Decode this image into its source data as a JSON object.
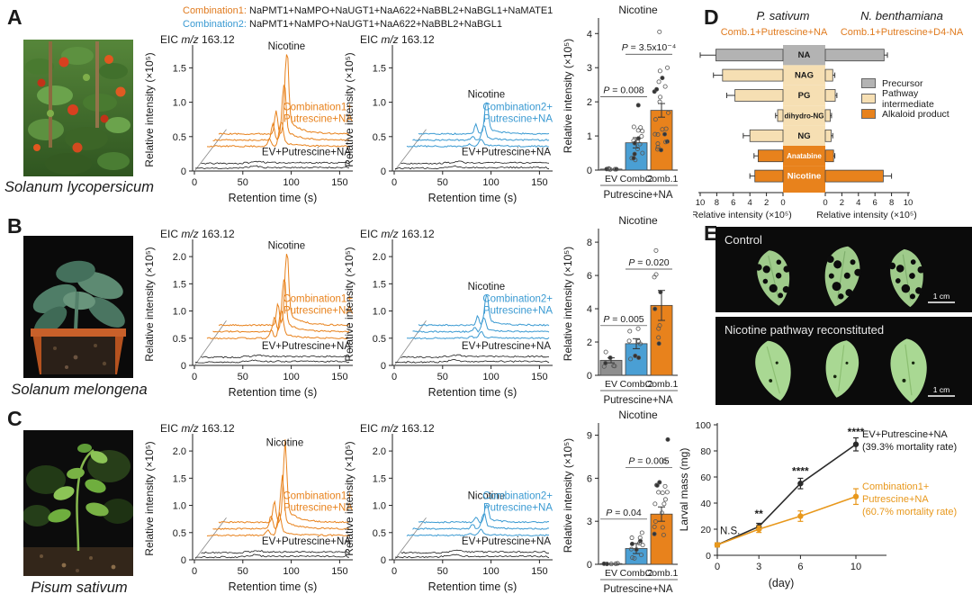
{
  "header": {
    "comb1_label": "Combination1:",
    "comb1_value": "NaPMT1+NaMPO+NaUGT1+NaA622+NaBBL2+NaBGL1+NaMATE1",
    "comb2_label": "Combination2:",
    "comb2_value": "NaPMT1+NaMPO+NaUGT1+NaA622+NaBBL2+NaBGL1"
  },
  "panel_labels": {
    "A": "A",
    "B": "B",
    "C": "C",
    "D": "D",
    "E": "E"
  },
  "species": {
    "A": "Solanum lycopersicum",
    "B": "Solanum melongena",
    "C": "Pisum sativum"
  },
  "colors": {
    "orange": "#e8821c",
    "blue": "#4a9fd4",
    "gray_bar": "#8f8f8f",
    "tan": "#f6dfb3",
    "precursor_gray": "#b3b3b3"
  },
  "panelD": {
    "left_header": "P. sativum",
    "right_header": "N. benthamiana",
    "left_sub": "Comb.1+Putrescine+NA",
    "right_sub": "Comb.1+Putrescine+D4-NA",
    "legend": [
      {
        "label": "Precursor",
        "color": "#b3b3b3"
      },
      {
        "label": "Pathway intermediate",
        "color": "#f6dfb3"
      },
      {
        "label": "Alkaloid product",
        "color": "#e8821c"
      }
    ]
  },
  "panelE": {
    "photo1_label": "Control",
    "photo2_label": "Nicotine pathway reconstituted",
    "scale_label": "1 cm"
  },
  "chart_data": [
    {
      "id": "chromA1",
      "kind": "chromatogram",
      "type": "line",
      "seed": 11,
      "title": "EIC m/z 163.12",
      "ylabel": "Relative intensity (×10⁵)",
      "xlabel": "Retention time (s)",
      "xticks": [
        0,
        50,
        100,
        150
      ],
      "yticks": [
        {
          "v": 0,
          "t": "0"
        },
        {
          "v": 0.5,
          "t": "0.5"
        },
        {
          "v": 1,
          "t": "1.0"
        },
        {
          "v": 1.5,
          "t": "1.5"
        }
      ],
      "ylim": [
        0,
        1.78
      ],
      "peak_label": "Nicotine",
      "peak_x": 78,
      "pre_x": 66,
      "series": [
        {
          "label_lines": [
            "Combination1+",
            "Putrescine+NA"
          ],
          "color": "#e8821c",
          "baselines": [
            0.36,
            0.45,
            0.54
          ],
          "peaks": [
            0.35,
            0.8,
            1.15
          ]
        },
        {
          "label": "EV+Putrescine+NA",
          "color": "#1a1a1a",
          "baselines": [
            0.04,
            0.11
          ]
        }
      ]
    },
    {
      "id": "chromA2",
      "kind": "chromatogram",
      "type": "line",
      "seed": 12,
      "title": "EIC m/z 163.12",
      "ylabel": "Relative intensity (×10⁵)",
      "xlabel": "Retention time (s)",
      "xticks": [
        0,
        50,
        100,
        150
      ],
      "yticks": [
        {
          "v": 0,
          "t": "0"
        },
        {
          "v": 0.5,
          "t": "0.5"
        },
        {
          "v": 1,
          "t": "1.0"
        },
        {
          "v": 1.5,
          "t": "1.5"
        }
      ],
      "ylim": [
        0,
        1.78
      ],
      "peak_label": "Nicotine",
      "peak_x": 78,
      "pre_x": 66,
      "series": [
        {
          "label_lines": [
            "Combination2+",
            "Putrescine+NA"
          ],
          "color": "#3a9ad2",
          "baselines": [
            0.36,
            0.45,
            0.54
          ],
          "peaks": [
            0.1,
            0.2,
            0.45
          ]
        },
        {
          "label": "EV+Putrescine+NA",
          "color": "#1a1a1a",
          "baselines": [
            0.04,
            0.11
          ]
        }
      ]
    },
    {
      "id": "chromB1",
      "kind": "chromatogram",
      "type": "line",
      "seed": 13,
      "title": "EIC m/z 163.12",
      "ylabel": "Relative intensity (×10⁵)",
      "xlabel": "Retention time (s)",
      "xticks": [
        0,
        50,
        100,
        150
      ],
      "yticks": [
        {
          "v": 0,
          "t": "0"
        },
        {
          "v": 0.5,
          "t": "0.5"
        },
        {
          "v": 1,
          "t": "1.0"
        },
        {
          "v": 1.5,
          "t": "1.5"
        },
        {
          "v": 2,
          "t": "2.0"
        }
      ],
      "ylim": [
        0,
        2.25
      ],
      "peak_label": "Nicotine",
      "peak_x": 78,
      "pre_x": 68,
      "series": [
        {
          "label_lines": [
            "Combination1+",
            "Putrescine+NA"
          ],
          "color": "#e8821c",
          "baselines": [
            0.5,
            0.62,
            0.74
          ],
          "peaks": [
            0.5,
            0.95,
            1.3
          ]
        },
        {
          "label": "EV+Putrescine+NA",
          "color": "#1a1a1a",
          "baselines": [
            0.06,
            0.15
          ]
        }
      ]
    },
    {
      "id": "chromB2",
      "kind": "chromatogram",
      "type": "line",
      "seed": 14,
      "title": "EIC m/z 163.12",
      "ylabel": "Relative intensity (×10⁵)",
      "xlabel": "Retention time (s)",
      "xticks": [
        0,
        50,
        100,
        150
      ],
      "yticks": [
        {
          "v": 0,
          "t": "0"
        },
        {
          "v": 0.5,
          "t": "0.5"
        },
        {
          "v": 1,
          "t": "1.0"
        },
        {
          "v": 1.5,
          "t": "1.5"
        },
        {
          "v": 2,
          "t": "2.0"
        }
      ],
      "ylim": [
        0,
        2.25
      ],
      "peak_label": "Nicotine",
      "peak_x": 78,
      "pre_x": 68,
      "series": [
        {
          "label_lines": [
            "Combination2+",
            "Putrescine+NA"
          ],
          "color": "#3a9ad2",
          "baselines": [
            0.5,
            0.62,
            0.74
          ],
          "peaks": [
            0.12,
            0.25,
            0.55
          ]
        },
        {
          "label": "EV+Putrescine+NA",
          "color": "#1a1a1a",
          "baselines": [
            0.06,
            0.15
          ]
        }
      ]
    },
    {
      "id": "chromC1",
      "kind": "chromatogram",
      "type": "line",
      "seed": 15,
      "title": "EIC m/z 163.12",
      "ylabel": "Relative intensity (×10⁵)",
      "xlabel": "Retention time (s)",
      "xticks": [
        0,
        50,
        100,
        150
      ],
      "yticks": [
        {
          "v": 0,
          "t": "0"
        },
        {
          "v": 0.5,
          "t": "0.5"
        },
        {
          "v": 1,
          "t": "1.0"
        },
        {
          "v": 1.5,
          "t": "1.5"
        },
        {
          "v": 2,
          "t": "2.0"
        }
      ],
      "ylim": [
        0,
        2.25
      ],
      "peak_label": "Nicotine",
      "peak_x": 76,
      "pre_x": 64,
      "series": [
        {
          "label_lines": [
            "Combination1+",
            "Putrescine+NA"
          ],
          "color": "#e8821c",
          "baselines": [
            0.45,
            0.57,
            0.69
          ],
          "peaks": [
            0.35,
            0.85,
            1.3
          ]
        },
        {
          "label": "EV+Putrescine+NA",
          "color": "#1a1a1a",
          "baselines": [
            0.05,
            0.13
          ]
        }
      ]
    },
    {
      "id": "chromC2",
      "kind": "chromatogram",
      "type": "line",
      "seed": 16,
      "title": "EIC m/z 163.12",
      "ylabel": "Relative intensity (×10⁵)",
      "xlabel": "Retention time (s)",
      "xticks": [
        0,
        50,
        100,
        150
      ],
      "yticks": [
        {
          "v": 0,
          "t": "0"
        },
        {
          "v": 0.5,
          "t": "0.5"
        },
        {
          "v": 1,
          "t": "1.0"
        },
        {
          "v": 1.5,
          "t": "1.5"
        },
        {
          "v": 2,
          "t": "2.0"
        }
      ],
      "ylim": [
        0,
        2.25
      ],
      "peak_label": "Nicotine",
      "peak_x": 78,
      "pre_x": 66,
      "series": [
        {
          "label_lines": [
            "Combination2+",
            "Putrescine+NA"
          ],
          "color": "#3a9ad2",
          "baselines": [
            0.45,
            0.57,
            0.69
          ],
          "peaks": [
            0.1,
            0.28,
            0.33
          ]
        },
        {
          "label": "EV+Putrescine+NA",
          "color": "#1a1a1a",
          "baselines": [
            0.05,
            0.13
          ]
        }
      ]
    },
    {
      "id": "barA",
      "kind": "bar",
      "type": "bar",
      "seed": 21,
      "title": "Nicotine",
      "ylabel": "Relative intensity (×10⁵)",
      "xlabel": "Putrescine+NA",
      "categories": [
        "EV",
        "Comb.2",
        "Comb.1"
      ],
      "values": [
        0.03,
        0.8,
        1.75
      ],
      "errors": [
        0.01,
        0.15,
        0.2
      ],
      "bar_colors": [
        "#8f8f8f",
        "#4a9fd4",
        "#e8821c"
      ],
      "yticks": [
        0,
        1,
        2,
        3,
        4
      ],
      "ylim": [
        0,
        4.35
      ],
      "pvalues": [
        {
          "text": "P = 0.008",
          "between": [
            0,
            1
          ],
          "y": 2.25
        },
        {
          "text": "P = 3.5x10⁻⁴",
          "between": [
            1,
            2
          ],
          "y": 3.5
        }
      ],
      "scatter_n": [
        6,
        16,
        20
      ],
      "outliers": [
        [],
        [
          1.9
        ],
        [
          2.7,
          3.0,
          4.05
        ]
      ]
    },
    {
      "id": "barB",
      "kind": "bar",
      "type": "bar",
      "seed": 22,
      "title": "Nicotine",
      "ylabel": "Relative intensity (×10⁵)",
      "xlabel": "Putrescine+NA",
      "categories": [
        "EV",
        "Comb.2",
        "Comb.1"
      ],
      "values": [
        0.9,
        1.9,
        4.2
      ],
      "errors": [
        0.15,
        0.3,
        0.9
      ],
      "bar_colors": [
        "#8f8f8f",
        "#4a9fd4",
        "#e8821c"
      ],
      "yticks": [
        0,
        2,
        4,
        6,
        8
      ],
      "ylim": [
        0,
        8.6
      ],
      "pvalues": [
        {
          "text": "P = 0.005",
          "between": [
            0,
            1
          ],
          "y": 3.2
        },
        {
          "text": "P = 0.020",
          "between": [
            1,
            2
          ],
          "y": 6.6
        }
      ],
      "scatter_n": [
        6,
        7,
        6
      ],
      "outliers": [
        [],
        [
          2.8
        ],
        [
          7.5,
          5.9,
          5.0
        ]
      ]
    },
    {
      "id": "barC",
      "kind": "bar",
      "type": "bar",
      "seed": 23,
      "title": "Nicotine",
      "ylabel": "Relative intensity (×10⁵)",
      "xlabel": "Putrescine+NA",
      "categories": [
        "EV",
        "Comb.2",
        "Comb.1"
      ],
      "values": [
        0.05,
        1.1,
        3.5
      ],
      "errors": [
        0.02,
        0.35,
        0.5
      ],
      "bar_colors": [
        "#8f8f8f",
        "#4a9fd4",
        "#e8821c"
      ],
      "yticks": [
        0,
        3,
        6,
        9
      ],
      "ylim": [
        0,
        9.6
      ],
      "pvalues": [
        {
          "text": "P = 0.04",
          "between": [
            0,
            1
          ],
          "y": 3.4
        },
        {
          "text": "P = 0.005",
          "between": [
            1,
            2
          ],
          "y": 7.0
        }
      ],
      "scatter_n": [
        5,
        11,
        16
      ],
      "outliers": [
        [],
        [
          2.2
        ],
        [
          8.7,
          7.2
        ]
      ]
    },
    {
      "id": "tornadoD",
      "kind": "tornado",
      "type": "bar",
      "xlabel": "Relative intensity (×10⁵)",
      "xticks_left": [
        10,
        8,
        6,
        4,
        2,
        0
      ],
      "xticks_right": [
        0,
        2,
        4,
        6,
        8,
        10
      ],
      "xlim": 10,
      "type_colors": {
        "precursor": "#b3b3b3",
        "intermediate": "#f6dfb3",
        "alkaloid": "#e8821c"
      },
      "rows": [
        {
          "label": "NA",
          "rtype": "precursor",
          "left": 8.1,
          "left_err": 1.9,
          "right": 7.1,
          "right_err": 0.4
        },
        {
          "label": "NAG",
          "rtype": "intermediate",
          "left": 7.3,
          "left_err": 1.1,
          "right": 0.9,
          "right_err": 0.25
        },
        {
          "label": "PG",
          "rtype": "intermediate",
          "left": 5.8,
          "left_err": 1.0,
          "right": 1.2,
          "right_err": 0.2
        },
        {
          "label": "dihydro-NG",
          "rtype": "intermediate",
          "left": 0.65,
          "left_err": 0.25,
          "right": 0.6,
          "right_err": 0.15
        },
        {
          "label": "NG",
          "rtype": "intermediate",
          "left": 4.0,
          "left_err": 0.8,
          "right": 0.7,
          "right_err": 0.2
        },
        {
          "label": "Anatabine",
          "rtype": "alkaloid",
          "left": 3.0,
          "left_err": 0.5,
          "right": 1.0,
          "right_err": 0.15
        },
        {
          "label": "Nicotine",
          "rtype": "alkaloid",
          "left": 3.4,
          "left_err": 0.6,
          "right": 7.0,
          "right_err": 1.0
        }
      ]
    },
    {
      "id": "lineE",
      "kind": "line",
      "type": "line",
      "x": [
        0,
        3,
        6,
        10
      ],
      "xlabel": "(day)",
      "ylabel": "Larval mass (mg)",
      "yticks": [
        0,
        20,
        40,
        60,
        80,
        100
      ],
      "ylim": [
        0,
        100
      ],
      "series": [
        {
          "name": "EV+Putrescine+NA",
          "note": "(39.3% mortality rate)",
          "color": "#2b2b2b",
          "values": [
            8,
            22,
            55,
            85
          ],
          "errors": [
            1.5,
            2.5,
            4,
            5
          ],
          "legend_lines": [
            "EV+Putrescine+NA",
            "(39.3% mortality rate)"
          ],
          "legend_y": 34
        },
        {
          "name": "Combination1+Putrescine+NA",
          "note": "(60.7% mortality rate)",
          "color": "#e8981c",
          "values": [
            8,
            20,
            30,
            45
          ],
          "errors": [
            1.5,
            2.5,
            4,
            6
          ],
          "legend_lines": [
            "Combination1+",
            "Putrescine+NA",
            "(60.7% mortality rate)"
          ],
          "legend_y": 92
        }
      ],
      "annotations": [
        {
          "x": 0,
          "text": "N.S."
        },
        {
          "x": 3,
          "text": "**"
        },
        {
          "x": 6,
          "text": "****"
        },
        {
          "x": 10,
          "text": "****"
        }
      ]
    }
  ]
}
